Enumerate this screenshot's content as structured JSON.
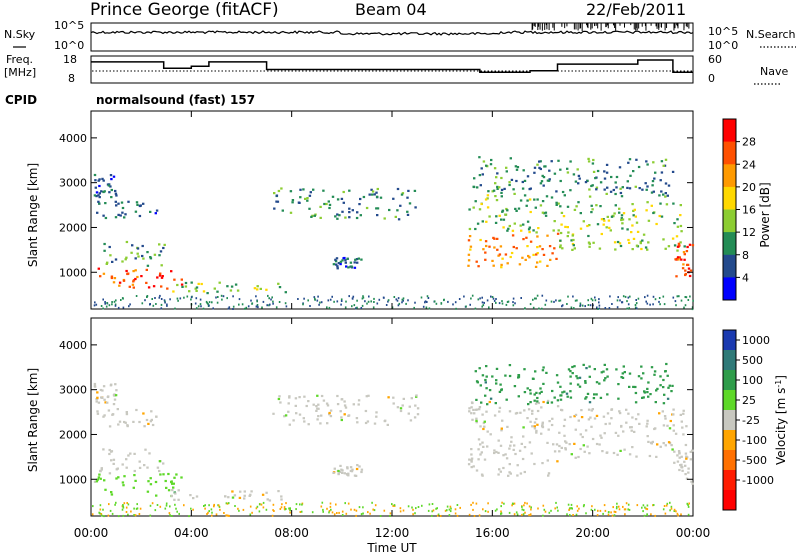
{
  "header": {
    "site": "Prince George (fitACF)",
    "beam": "Beam 04",
    "date": "22/Feb/2011"
  },
  "top_panels": {
    "nsky_label": "N.Sky",
    "nsky_ticks": [
      "10^5",
      "10^0"
    ],
    "nsearch_label": "N.Search",
    "nsearch_ticks": [
      "10^5",
      "10^0"
    ],
    "freq_label_line1": "Freq.",
    "freq_label_line2": "[MHz]",
    "freq_ticks": [
      "18",
      "8"
    ],
    "nave_label": "Nave",
    "nave_ticks": [
      "60",
      "0"
    ],
    "cpid_label": "CPID",
    "cpid_text": "normalsound (fast) 157"
  },
  "colorbars": {
    "power": {
      "label": "Power [dB]",
      "ticks": [
        "28",
        "24",
        "20",
        "16",
        "12",
        "8",
        "4"
      ],
      "colors": [
        "#ff0000",
        "#ff5000",
        "#ff9a00",
        "#ffd800",
        "#8ccd32",
        "#238c55",
        "#234a8c",
        "#0000ff"
      ]
    },
    "velocity": {
      "label": "Velocity [m s",
      "label_exponent": "-1",
      "label_close": "]",
      "ticks": [
        "1000",
        "500",
        "100",
        "25",
        "-25",
        "-100",
        "-500",
        "-1000"
      ],
      "colors": [
        "#1a3ab0",
        "#2f7a78",
        "#2e9c4a",
        "#5ed828",
        "#c8c8c0",
        "#ffa500",
        "#ff7000",
        "#ff1c00",
        "#ff0000"
      ]
    }
  },
  "chart_data": {
    "type": "heatmap",
    "title": "Prince George (fitACF)   Beam 04   22/Feb/2011",
    "xlabel": "Time UT",
    "ylabel": "Slant Range [km]",
    "x_ticks": [
      "00:00",
      "04:00",
      "08:00",
      "12:00",
      "16:00",
      "20:00",
      "00:00"
    ],
    "x_range_hours": [
      0,
      24
    ],
    "y_ticks": [
      "1000",
      "2000",
      "3000",
      "4000"
    ],
    "y_range_km": [
      180,
      4600
    ],
    "panels": [
      "power",
      "velocity"
    ],
    "freq_mhz": [
      {
        "t": 0.0,
        "v": 15.8
      },
      {
        "t": 2.9,
        "v": 15.8
      },
      {
        "t": 2.9,
        "v": 13.5
      },
      {
        "t": 4.0,
        "v": 13.5
      },
      {
        "t": 4.0,
        "v": 14.2
      },
      {
        "t": 4.7,
        "v": 14.2
      },
      {
        "t": 4.7,
        "v": 15.8
      },
      {
        "t": 7.0,
        "v": 15.8
      },
      {
        "t": 7.0,
        "v": 13.0
      },
      {
        "t": 15.5,
        "v": 13.0
      },
      {
        "t": 15.5,
        "v": 12.0
      },
      {
        "t": 17.5,
        "v": 12.0
      },
      {
        "t": 17.5,
        "v": 12.5
      },
      {
        "t": 18.6,
        "v": 12.5
      },
      {
        "t": 18.6,
        "v": 15.0
      },
      {
        "t": 21.8,
        "v": 15.0
      },
      {
        "t": 21.8,
        "v": 16.5
      },
      {
        "t": 23.2,
        "v": 16.5
      },
      {
        "t": 23.2,
        "v": 12.0
      },
      {
        "t": 24.0,
        "v": 12.0
      }
    ],
    "echo_regions": [
      {
        "t0": 0.1,
        "t1": 3.7,
        "r0": 650,
        "r1": 1150,
        "power": 28,
        "velocity": 100
      },
      {
        "t0": 0.3,
        "t1": 3.0,
        "r0": 1150,
        "r1": 1700,
        "power": 10,
        "velocity": 25
      },
      {
        "t0": 0.2,
        "t1": 2.6,
        "r0": 2200,
        "r1": 2600,
        "power": 6,
        "velocity": -25
      },
      {
        "t0": 0.1,
        "t1": 1.0,
        "r0": 2700,
        "r1": 3200,
        "power": 6,
        "velocity": -25
      },
      {
        "t0": 3.0,
        "t1": 7.8,
        "r0": 550,
        "r1": 800,
        "power": 14,
        "velocity": 25
      },
      {
        "t0": 7.2,
        "t1": 13.0,
        "r0": 2200,
        "r1": 2900,
        "power": 8,
        "velocity": -25
      },
      {
        "t0": 9.6,
        "t1": 10.8,
        "r0": 1100,
        "r1": 1350,
        "power": 6,
        "velocity": -25
      },
      {
        "t0": 15.0,
        "t1": 18.6,
        "r0": 1100,
        "r1": 1900,
        "power": 24,
        "velocity": -25
      },
      {
        "t0": 15.0,
        "t1": 18.6,
        "r0": 1900,
        "r1": 2800,
        "power": 12,
        "velocity": -25
      },
      {
        "t0": 18.6,
        "t1": 23.7,
        "r0": 1500,
        "r1": 2600,
        "power": 14,
        "velocity": -25
      },
      {
        "t0": 15.2,
        "t1": 23.2,
        "r0": 2700,
        "r1": 3600,
        "power": 8,
        "velocity": 500
      },
      {
        "t0": 23.2,
        "t1": 23.95,
        "r0": 900,
        "r1": 1700,
        "power": 28,
        "velocity": -25
      }
    ]
  }
}
